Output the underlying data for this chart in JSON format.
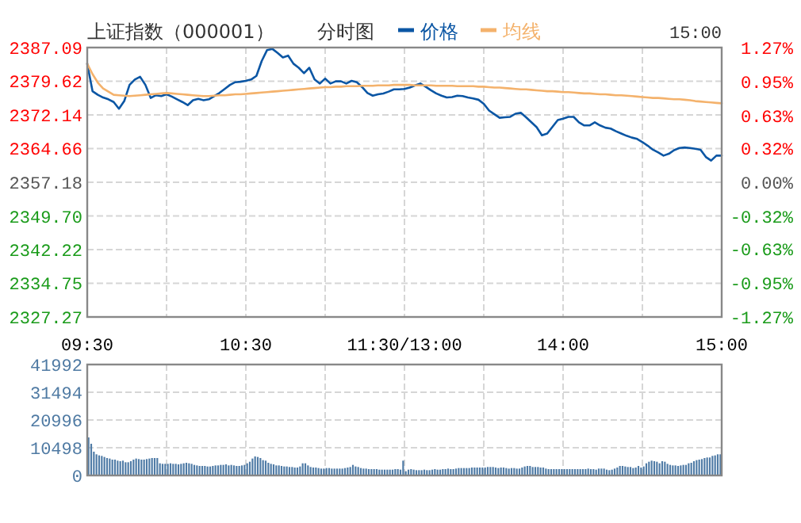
{
  "chart_data": [
    {
      "type": "line",
      "title": "上证指数（000001）",
      "subtitle": "分时图",
      "annotations": [
        "15:00"
      ],
      "legend": "top",
      "grid": true,
      "categories": [
        "09:30",
        null,
        null,
        null,
        null,
        null,
        null,
        null,
        null,
        null,
        null,
        null,
        null,
        null,
        null,
        null,
        null,
        null,
        null,
        null,
        null,
        null,
        null,
        null,
        null,
        null,
        null,
        null,
        null,
        null,
        "10:30",
        null,
        null,
        null,
        null,
        null,
        null,
        null,
        null,
        null,
        null,
        null,
        null,
        null,
        null,
        null,
        null,
        null,
        null,
        null,
        null,
        null,
        null,
        null,
        null,
        null,
        null,
        null,
        null,
        null,
        "11:30/13:00",
        null,
        null,
        null,
        null,
        null,
        null,
        null,
        null,
        null,
        null,
        null,
        null,
        null,
        null,
        null,
        null,
        null,
        null,
        null,
        null,
        null,
        null,
        null,
        null,
        null,
        null,
        null,
        null,
        null,
        "14:00",
        null,
        null,
        null,
        null,
        null,
        null,
        null,
        null,
        null,
        null,
        null,
        null,
        null,
        null,
        null,
        null,
        null,
        null,
        null,
        null,
        null,
        null,
        null,
        null,
        null,
        null,
        null,
        null,
        null,
        "15:00"
      ],
      "ylim": [
        2327.27,
        2387.09
      ],
      "yticks": [
        {
          "value": 2327.27,
          "label": "2327.27"
        },
        {
          "value": 2334.75,
          "label": "2334.75"
        },
        {
          "value": 2342.22,
          "label": "2342.22"
        },
        {
          "value": 2349.7,
          "label": "2349.70"
        },
        {
          "value": 2357.18,
          "label": "2357.18"
        },
        {
          "value": 2364.66,
          "label": "2364.66"
        },
        {
          "value": 2372.14,
          "label": "2372.14"
        },
        {
          "value": 2379.62,
          "label": "2379.62"
        },
        {
          "value": 2387.09,
          "label": "2387.09"
        }
      ],
      "y2lim": [
        -1.27,
        1.27
      ],
      "y2ticks": [
        {
          "value": -1.27,
          "label": "-1.27%"
        },
        {
          "value": -0.95,
          "label": "-0.95%"
        },
        {
          "value": -0.63,
          "label": "-0.63%"
        },
        {
          "value": -0.32,
          "label": "-0.32%"
        },
        {
          "value": 0,
          "label": "0.00%"
        },
        {
          "value": 0.32,
          "label": "0.32%"
        },
        {
          "value": 0.63,
          "label": "0.63%"
        },
        {
          "value": 0.95,
          "label": "0.95%"
        },
        {
          "value": 1.27,
          "label": "1.27%"
        }
      ],
      "series": [
        {
          "name": "价格",
          "color": "#0b56a4",
          "values": [
            2383.5,
            2377.4,
            2376.6,
            2376.0,
            2375.6,
            2375.0,
            2373.5,
            2375.2,
            2378.8,
            2380.0,
            2380.6,
            2378.8,
            2375.9,
            2376.5,
            2376.3,
            2376.7,
            2376.2,
            2375.6,
            2375.0,
            2374.3,
            2375.4,
            2375.7,
            2375.4,
            2375.6,
            2376.3,
            2377.0,
            2377.9,
            2378.8,
            2379.4,
            2379.5,
            2379.7,
            2380.0,
            2380.8,
            2384.1,
            2386.5,
            2386.8,
            2385.9,
            2384.9,
            2385.3,
            2383.5,
            2382.6,
            2381.4,
            2382.6,
            2380.0,
            2379.1,
            2380.2,
            2379.1,
            2379.6,
            2379.6,
            2379.1,
            2379.7,
            2379.4,
            2378.3,
            2377.0,
            2376.4,
            2376.7,
            2376.9,
            2377.3,
            2377.8,
            2377.8,
            2377.9,
            2378.2,
            2378.7,
            2379.1,
            2378.4,
            2377.6,
            2376.9,
            2376.4,
            2376.0,
            2376.1,
            2376.4,
            2376.3,
            2376.0,
            2375.8,
            2375.5,
            2374.6,
            2373.1,
            2372.3,
            2371.5,
            2371.6,
            2371.7,
            2372.4,
            2372.6,
            2371.6,
            2370.5,
            2369.4,
            2367.6,
            2368.0,
            2369.5,
            2371.0,
            2371.3,
            2371.7,
            2371.7,
            2370.5,
            2369.8,
            2369.8,
            2370.5,
            2369.8,
            2369.3,
            2369.1,
            2368.5,
            2368.0,
            2367.5,
            2367.1,
            2366.8,
            2366.1,
            2365.3,
            2364.4,
            2363.8,
            2363.1,
            2363.5,
            2364.3,
            2364.8,
            2364.9,
            2364.8,
            2364.6,
            2364.4,
            2362.8,
            2362.0,
            2363.1,
            2363.1
          ]
        },
        {
          "name": "均线",
          "color": "#f4b26c",
          "values": [
            2383.5,
            2381.2,
            2379.3,
            2378.0,
            2377.3,
            2376.6,
            2376.5,
            2376.4,
            2376.3,
            2376.4,
            2376.5,
            2376.6,
            2376.7,
            2376.8,
            2376.9,
            2377.0,
            2376.9,
            2376.8,
            2376.7,
            2376.6,
            2376.5,
            2376.4,
            2376.3,
            2376.3,
            2376.4,
            2376.5,
            2376.5,
            2376.6,
            2376.7,
            2376.7,
            2376.8,
            2376.9,
            2377.0,
            2377.1,
            2377.2,
            2377.3,
            2377.4,
            2377.5,
            2377.6,
            2377.7,
            2377.8,
            2377.9,
            2378.0,
            2378.1,
            2378.2,
            2378.3,
            2378.3,
            2378.4,
            2378.4,
            2378.5,
            2378.5,
            2378.5,
            2378.6,
            2378.6,
            2378.6,
            2378.7,
            2378.7,
            2378.7,
            2378.8,
            2378.8,
            2378.8,
            2378.8,
            2378.7,
            2378.7,
            2378.7,
            2378.7,
            2378.6,
            2378.6,
            2378.6,
            2378.6,
            2378.5,
            2378.5,
            2378.5,
            2378.5,
            2378.4,
            2378.4,
            2378.3,
            2378.2,
            2378.2,
            2378.1,
            2378.0,
            2377.9,
            2377.8,
            2377.8,
            2377.7,
            2377.6,
            2377.5,
            2377.4,
            2377.4,
            2377.3,
            2377.2,
            2377.2,
            2377.1,
            2377.0,
            2376.9,
            2376.9,
            2376.8,
            2376.7,
            2376.7,
            2376.6,
            2376.5,
            2376.5,
            2376.4,
            2376.3,
            2376.2,
            2376.1,
            2376.0,
            2375.9,
            2375.9,
            2375.8,
            2375.7,
            2375.6,
            2375.6,
            2375.5,
            2375.4,
            2375.2,
            2375.1,
            2375.0,
            2374.9,
            2374.8,
            2374.7
          ]
        }
      ]
    },
    {
      "type": "bar",
      "grid": true,
      "tick_labels": "y",
      "categories": [
        null,
        null,
        null,
        null,
        null,
        null,
        null,
        null,
        null,
        null,
        null,
        null,
        null,
        null,
        null,
        null,
        null,
        null,
        null,
        null,
        null,
        null,
        null,
        null,
        null,
        null,
        null,
        null,
        null,
        null,
        null,
        null,
        null,
        null,
        null,
        null,
        null,
        null,
        null,
        null,
        null,
        null,
        null,
        null,
        null,
        null,
        null,
        null,
        null,
        null,
        null,
        null,
        null,
        null,
        null,
        null,
        null,
        null,
        null,
        null,
        null,
        null,
        null,
        null,
        null,
        null,
        null,
        null,
        null,
        null,
        null,
        null,
        null,
        null,
        null,
        null,
        null,
        null,
        null,
        null,
        null,
        null,
        null,
        null,
        null,
        null,
        null,
        null,
        null,
        null,
        null,
        null,
        null,
        null,
        null,
        null,
        null,
        null,
        null,
        null,
        null,
        null,
        null,
        null,
        null,
        null,
        null,
        null,
        null,
        null,
        null,
        null,
        null,
        null,
        null,
        null,
        null,
        null,
        null,
        null,
        null,
        null,
        null,
        null,
        null,
        null,
        null,
        null,
        null,
        null,
        null,
        null,
        null,
        null,
        null,
        null,
        null,
        null,
        null,
        null,
        null,
        null,
        null,
        null,
        null,
        null,
        null,
        null,
        null,
        null,
        null,
        null,
        null,
        null,
        null,
        null,
        null,
        null,
        null,
        null,
        null,
        null,
        null,
        null,
        null,
        null,
        null,
        null,
        null,
        null,
        null,
        null,
        null,
        null,
        null,
        null,
        null,
        null,
        null,
        null,
        null,
        null,
        null,
        null,
        null,
        null,
        null,
        null,
        null,
        null,
        null,
        null,
        null,
        null,
        null,
        null,
        null,
        null,
        null,
        null,
        null,
        null,
        null,
        null,
        null,
        null,
        null,
        null,
        null,
        null,
        null,
        null,
        null,
        null,
        null,
        null,
        null,
        null,
        null,
        null,
        null,
        null,
        null,
        null,
        null,
        null,
        null,
        null,
        null,
        null,
        null,
        null,
        null,
        null,
        null,
        null,
        null,
        null,
        null,
        null
      ],
      "ylim": [
        0,
        41992
      ],
      "yticks": [
        0,
        10498,
        20996,
        31494,
        41992
      ],
      "series": [
        {
          "color": "#4f7ba6",
          "values": [
            14400,
            12000,
            9000,
            8000,
            7600,
            7400,
            7000,
            6600,
            6400,
            6000,
            6000,
            5600,
            5400,
            5600,
            5000,
            5000,
            5400,
            6000,
            6400,
            6200,
            6000,
            6000,
            6200,
            6400,
            6600,
            6600,
            6600,
            4600,
            4400,
            4400,
            4400,
            4600,
            4400,
            4400,
            4200,
            4400,
            4600,
            4800,
            4600,
            4400,
            4000,
            3800,
            3600,
            3600,
            3600,
            3400,
            3400,
            3600,
            3800,
            3800,
            4000,
            4000,
            4200,
            3800,
            4000,
            3800,
            3600,
            3600,
            3800,
            4000,
            4600,
            5200,
            6400,
            7200,
            7000,
            6600,
            5800,
            5600,
            4800,
            4400,
            4200,
            3800,
            3800,
            3600,
            3400,
            3400,
            3200,
            3200,
            3000,
            3000,
            3400,
            4600,
            4600,
            3800,
            3200,
            3000,
            3000,
            2800,
            2600,
            2600,
            2800,
            2800,
            2600,
            2600,
            2600,
            2600,
            2600,
            2800,
            3000,
            3200,
            4000,
            3400,
            3200,
            2800,
            2600,
            2600,
            2400,
            2400,
            2400,
            2400,
            2200,
            2200,
            2200,
            2200,
            2200,
            2200,
            2400,
            2400,
            2200,
            5600,
            1600,
            2200,
            2400,
            2200,
            2000,
            2000,
            2000,
            2200,
            2000,
            2000,
            2200,
            2400,
            2200,
            2200,
            2400,
            2400,
            2600,
            2400,
            2400,
            2600,
            2800,
            2800,
            2800,
            2800,
            2800,
            3000,
            3000,
            3000,
            3000,
            3000,
            3000,
            3200,
            3200,
            3200,
            3000,
            2800,
            3000,
            3000,
            2800,
            2600,
            2800,
            2800,
            2600,
            2600,
            3000,
            3400,
            3600,
            3600,
            3200,
            3200,
            3200,
            3000,
            3000,
            2600,
            2400,
            2400,
            2400,
            2400,
            2400,
            2400,
            2400,
            2400,
            2400,
            2400,
            2400,
            2400,
            2400,
            2400,
            2400,
            2600,
            2400,
            2400,
            2200,
            2600,
            2600,
            2600,
            2200,
            2000,
            2200,
            2600,
            3000,
            3600,
            3600,
            3400,
            3200,
            3200,
            2800,
            3000,
            3600,
            3000,
            3400,
            4600,
            5200,
            5600,
            5400,
            5200,
            4600,
            5400,
            5200,
            4400,
            4000,
            3800,
            3800,
            3600,
            3800,
            4000,
            4000,
            4600,
            4800,
            5400,
            5800,
            6000,
            6200,
            6600,
            6800,
            6800,
            7400,
            7600,
            8000,
            8000
          ]
        }
      ]
    }
  ]
}
